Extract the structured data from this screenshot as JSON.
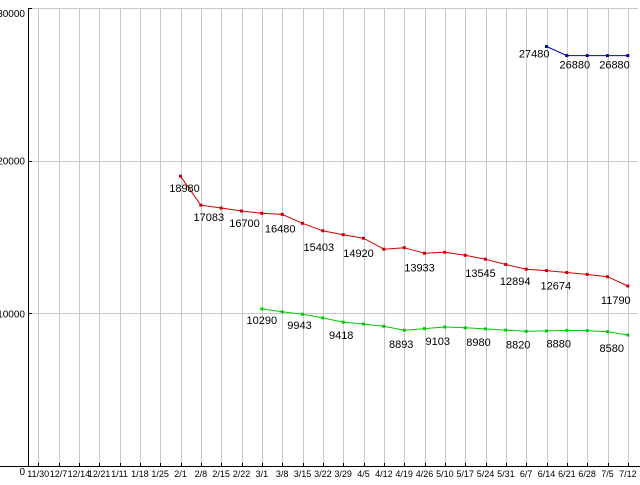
{
  "chart_data": {
    "type": "line",
    "title": "",
    "xlabel": "",
    "ylabel": "",
    "ylim": [
      0,
      30000
    ],
    "yticks": [
      0,
      10000,
      20000,
      30000
    ],
    "grid": true,
    "legend": "none",
    "colors": {
      "background": "#ffffff",
      "grid": "#c8c8c8",
      "axis": "#000000",
      "label_text": "#000000",
      "series_red": "#cc0000",
      "series_green": "#00cc00",
      "series_blue": "#0000bb"
    },
    "x_labels": [
      "11/30",
      "12/7",
      "12/14",
      "12/21",
      "1/11",
      "1/18",
      "1/25",
      "2/1",
      "2/8",
      "2/15",
      "2/22",
      "3/1",
      "3/8",
      "3/15",
      "3/22",
      "3/29",
      "4/5",
      "4/12",
      "4/19",
      "4/26",
      "5/10",
      "5/17",
      "5/24",
      "5/31",
      "6/7",
      "6/14",
      "6/21",
      "6/28",
      "7/5",
      "7/12"
    ],
    "series": [
      {
        "name": "series-red",
        "color": "#cc0000",
        "start_index": 7,
        "values": [
          18980,
          17083,
          16900,
          16700,
          16550,
          16480,
          15900,
          15403,
          15150,
          14920,
          14200,
          14300,
          13933,
          14000,
          13800,
          13545,
          13200,
          12894,
          12800,
          12674,
          12550,
          12400,
          11790
        ],
        "labels": [
          {
            "i": 7,
            "text": "18980",
            "dx": 4,
            "dy": 16
          },
          {
            "i": 8,
            "text": "17083",
            "dx": 8,
            "dy": 16
          },
          {
            "i": 10,
            "text": "16700",
            "dx": 3,
            "dy": 16
          },
          {
            "i": 12,
            "text": "16480",
            "dx": -2,
            "dy": 18
          },
          {
            "i": 14,
            "text": "15403",
            "dx": -4,
            "dy": 20
          },
          {
            "i": 16,
            "text": "14920",
            "dx": -5,
            "dy": 19
          },
          {
            "i": 19,
            "text": "13933",
            "dx": -5,
            "dy": 18
          },
          {
            "i": 22,
            "text": "13545",
            "dx": -5,
            "dy": 18
          },
          {
            "i": 24,
            "text": "12894",
            "dx": -11,
            "dy": 16
          },
          {
            "i": 26,
            "text": "12674",
            "dx": -11,
            "dy": 17
          },
          {
            "i": 29,
            "text": "11790",
            "dx": -12,
            "dy": 18
          }
        ]
      },
      {
        "name": "series-green",
        "color": "#00cc00",
        "start_index": 11,
        "values": [
          10290,
          10100,
          9943,
          9700,
          9418,
          9300,
          9150,
          8893,
          9000,
          9103,
          9050,
          8980,
          8900,
          8820,
          8850,
          8880,
          8870,
          8800,
          8580
        ],
        "labels": [
          {
            "i": 11,
            "text": "10290",
            "dx": 0,
            "dy": 15
          },
          {
            "i": 13,
            "text": "9943",
            "dx": -3,
            "dy": 15
          },
          {
            "i": 15,
            "text": "9418",
            "dx": -2,
            "dy": 17
          },
          {
            "i": 18,
            "text": "8893",
            "dx": -3,
            "dy": 18
          },
          {
            "i": 20,
            "text": "9103",
            "dx": -7,
            "dy": 18
          },
          {
            "i": 22,
            "text": "8980",
            "dx": -7,
            "dy": 17
          },
          {
            "i": 24,
            "text": "8820",
            "dx": -8,
            "dy": 17
          },
          {
            "i": 26,
            "text": "8880",
            "dx": -8,
            "dy": 17
          },
          {
            "i": 29,
            "text": "8580",
            "dx": -16,
            "dy": 17
          }
        ]
      },
      {
        "name": "series-blue",
        "color": "#0000bb",
        "start_index": 25,
        "values": [
          27480,
          26880,
          26880,
          26880,
          26880
        ],
        "labels": [
          {
            "i": 25,
            "text": "27480",
            "dx": 3,
            "dy": 11,
            "anchor": "end"
          },
          {
            "i": 26,
            "text": "26880",
            "dx": 8,
            "dy": 13
          },
          {
            "i": 28,
            "text": "26880",
            "dx": 7,
            "dy": 13
          }
        ]
      }
    ]
  }
}
